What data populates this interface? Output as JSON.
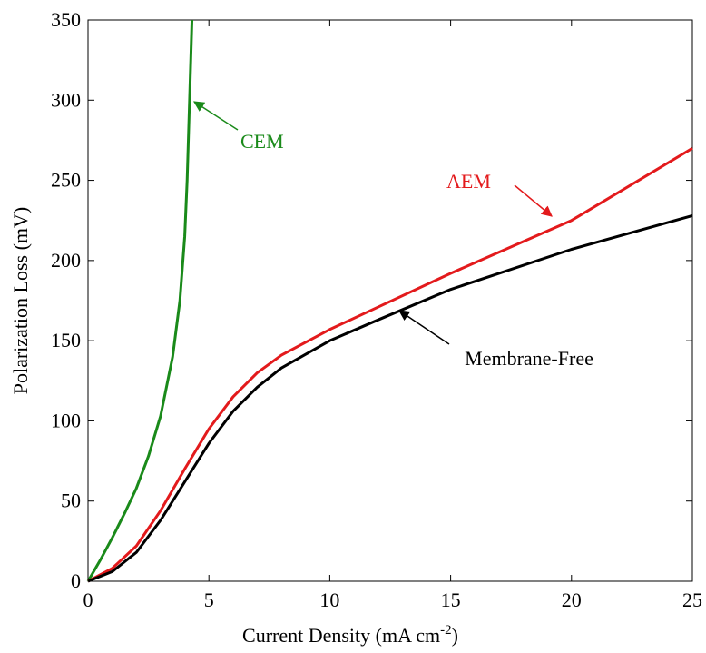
{
  "chart_data": {
    "type": "line",
    "x_label": {
      "text": "Current Density (mA cm",
      "superscript": "-2",
      "suffix": ")"
    },
    "y_label": "Polarization Loss (mV)",
    "series": [
      {
        "name": "CEM",
        "color": "#1a8a1a",
        "x": [
          0,
          0.5,
          1,
          1.5,
          2,
          2.5,
          3,
          3.5,
          3.8,
          4,
          4.1,
          4.2,
          4.3
        ],
        "values": [
          0,
          13,
          27,
          42,
          58,
          78,
          103,
          140,
          175,
          215,
          250,
          300,
          350
        ]
      },
      {
        "name": "AEM",
        "color": "#e31a1c",
        "x": [
          0,
          1,
          2,
          3,
          4,
          5,
          6,
          7,
          8,
          10,
          12,
          15,
          20,
          25
        ],
        "values": [
          0,
          8,
          22,
          44,
          70,
          95,
          115,
          130,
          141,
          157,
          171,
          192,
          225,
          270
        ]
      },
      {
        "name": "Membrane-Free",
        "color": "#000000",
        "x": [
          0,
          1,
          2,
          3,
          4,
          5,
          6,
          7,
          8,
          10,
          12,
          15,
          20,
          25
        ],
        "values": [
          0,
          6,
          18,
          38,
          62,
          86,
          106,
          121,
          133,
          150,
          163,
          182,
          207,
          228
        ]
      }
    ],
    "xlim": [
      0,
      25
    ],
    "xticks": [
      0,
      5,
      10,
      15,
      20,
      25
    ],
    "ylim": [
      0,
      350
    ],
    "yticks": [
      0,
      50,
      100,
      150,
      200,
      250,
      300,
      350
    ],
    "grid": false
  }
}
